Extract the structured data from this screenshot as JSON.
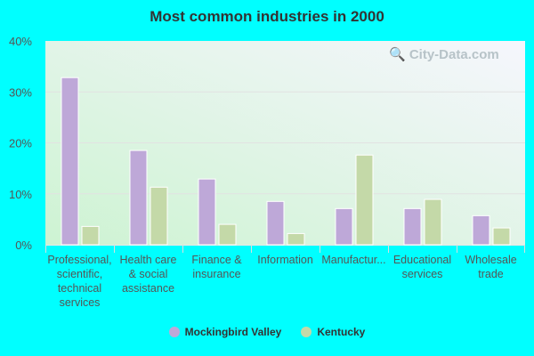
{
  "chart_data": {
    "type": "bar",
    "title": "Most common industries in 2000",
    "categories": [
      "Professional, scientific, technical services",
      "Health care & social assistance",
      "Finance & insurance",
      "Information",
      "Manufactur...",
      "Educational services",
      "Wholesale trade"
    ],
    "category_lines": [
      [
        "Professional,",
        "scientific,",
        "technical",
        "services"
      ],
      [
        "Health care",
        "& social",
        "assistance"
      ],
      [
        "Finance &",
        "insurance"
      ],
      [
        "Information"
      ],
      [
        "Manufactur..."
      ],
      [
        "Educational",
        "services"
      ],
      [
        "Wholesale",
        "trade"
      ]
    ],
    "series": [
      {
        "name": "Mockingbird Valley",
        "color": "#bea8d8",
        "values": [
          32.8,
          18.5,
          12.9,
          8.5,
          7.1,
          7.1,
          5.7
        ]
      },
      {
        "name": "Kentucky",
        "color": "#c4d9a8",
        "values": [
          3.6,
          11.3,
          4.0,
          2.2,
          17.6,
          8.9,
          3.3
        ]
      }
    ],
    "yticks": [
      "0%",
      "10%",
      "20%",
      "30%",
      "40%"
    ],
    "ylim": [
      0,
      40
    ],
    "grid": true,
    "legend": "bottom",
    "watermark": "City-Data.com"
  }
}
